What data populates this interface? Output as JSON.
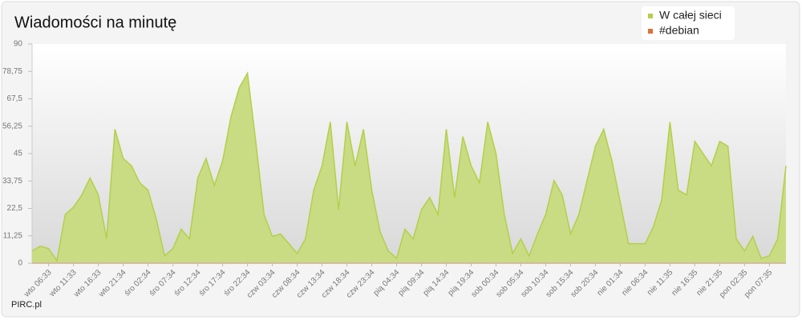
{
  "chart_data": {
    "type": "area",
    "title": "Wiadomości na minutę",
    "credit": "PIRC.pl",
    "legend_position": "top-right",
    "grid": false,
    "ylim": [
      0,
      90
    ],
    "yticks": [
      0,
      {
        "value": 11.25,
        "label": "11,25"
      },
      {
        "value": 22.5,
        "label": "22,5"
      },
      {
        "value": 33.75,
        "label": "33,75"
      },
      45,
      {
        "value": 56.25,
        "label": "56,25"
      },
      {
        "value": 67.5,
        "label": "67,5"
      },
      {
        "value": 78.75,
        "label": "78,75"
      },
      90
    ],
    "categories": [
      null,
      null,
      "wto 06:33",
      null,
      null,
      "wto 11:33",
      null,
      null,
      "wto 16:33",
      null,
      null,
      "wto 21:34",
      null,
      null,
      "śro 02:34",
      null,
      null,
      "śro 07:34",
      null,
      null,
      "śro 12:34",
      null,
      null,
      "śro 17:34",
      null,
      null,
      "śro 22:34",
      null,
      null,
      "czw 03:34",
      null,
      null,
      "czw 08:34",
      null,
      null,
      "czw 13:34",
      null,
      null,
      "czw 18:34",
      null,
      null,
      "czw 23:34",
      null,
      null,
      "pią 04:34",
      null,
      null,
      "pią 09:34",
      null,
      null,
      "pią 14:34",
      null,
      null,
      "pią 19:34",
      null,
      null,
      "sob 00:34",
      null,
      null,
      "sob 05:34",
      null,
      null,
      "sob 10:34",
      null,
      null,
      "sob 15:34",
      null,
      null,
      "sob 20:34",
      null,
      null,
      "nie 01:34",
      null,
      null,
      "nie 06:34",
      null,
      null,
      "nie 11:35",
      null,
      null,
      "nie 16:35",
      null,
      null,
      "nie 21:35",
      null,
      null,
      "pon 02:35",
      null,
      null,
      "pon 07:35",
      null,
      null
    ],
    "series": [
      {
        "name": "W całej sieci",
        "color": "#b3cf4a",
        "fill": "#c9dc83",
        "values": [
          5,
          7,
          6,
          1,
          20,
          23,
          28,
          35,
          28,
          10,
          55,
          43,
          40,
          33,
          30,
          18,
          3,
          6,
          14,
          10,
          35,
          43,
          32,
          42,
          60,
          72,
          78,
          50,
          20,
          11,
          12,
          8,
          4,
          10,
          30,
          40,
          58,
          22,
          58,
          40,
          55,
          30,
          13,
          5,
          2,
          14,
          10,
          22,
          27,
          20,
          55,
          27,
          52,
          40,
          33,
          58,
          45,
          20,
          4,
          10,
          3,
          12,
          20,
          34,
          28,
          12,
          20,
          34,
          48,
          55,
          42,
          25,
          8,
          8,
          8,
          15,
          26,
          58,
          30,
          28,
          50,
          45,
          40,
          50,
          48,
          10,
          5,
          11,
          2,
          3,
          10,
          40
        ]
      },
      {
        "name": "#debian",
        "color": "#e0703a",
        "values": [
          0,
          0,
          0,
          0,
          0,
          0,
          0,
          0,
          0,
          0,
          0,
          0,
          0,
          0,
          0,
          0,
          0,
          0,
          0,
          0,
          0,
          0,
          0,
          0,
          0,
          0,
          0,
          0,
          0,
          0,
          0,
          0,
          0,
          0,
          0,
          0,
          0,
          0,
          0,
          0,
          0,
          0,
          0,
          0,
          0,
          0,
          0,
          0,
          0,
          0,
          0,
          0,
          0,
          0,
          0,
          0,
          0,
          0,
          0,
          0,
          0,
          0,
          0,
          0,
          0,
          0,
          0,
          0,
          0,
          0,
          0,
          0,
          0,
          0,
          0,
          0,
          0,
          0,
          0,
          0,
          0,
          0,
          0,
          0,
          0,
          0,
          0,
          0,
          0,
          0,
          0,
          0
        ]
      }
    ]
  }
}
